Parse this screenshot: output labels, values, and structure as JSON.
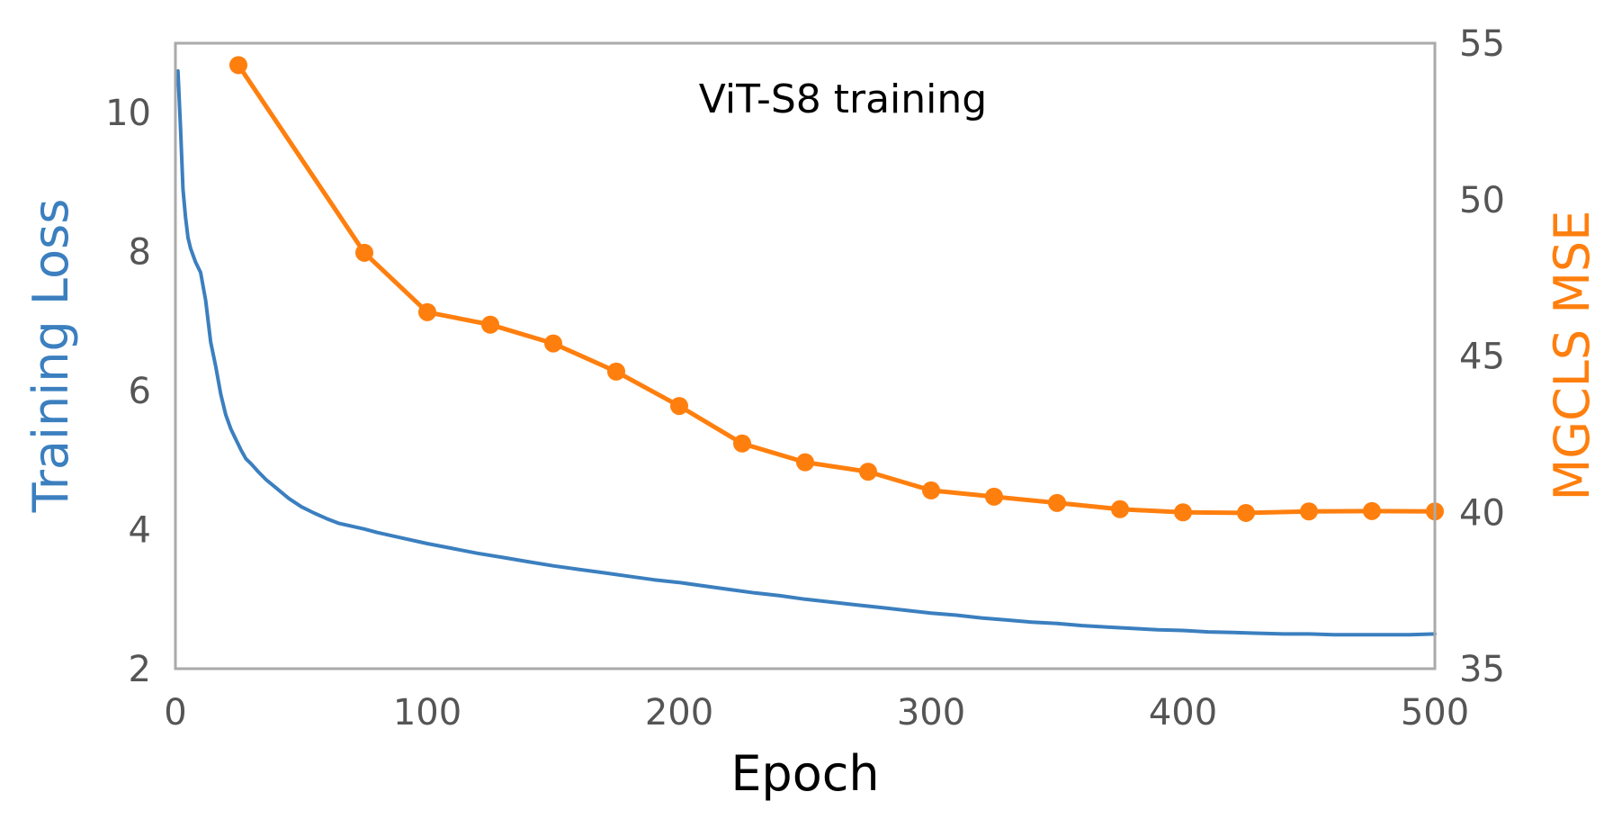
{
  "chart_data": {
    "type": "line",
    "title": "ViT-S8 training",
    "xlabel": "Epoch",
    "ylabel_left": "Training Loss",
    "ylabel_right": "MGCLS MSE",
    "xlim": [
      0,
      500
    ],
    "ylim_left": [
      2,
      11
    ],
    "ylim_right": [
      35,
      55
    ],
    "xticks": [
      0,
      100,
      200,
      300,
      400,
      500
    ],
    "yticks_left": [
      2,
      4,
      6,
      8,
      10
    ],
    "yticks_right": [
      35,
      40,
      45,
      50,
      55
    ],
    "grid": false,
    "colors": {
      "loss": "#3b7fbf",
      "mse": "#ff7f0e",
      "frame": "#aaaaaa",
      "tick": "#555555"
    },
    "series": [
      {
        "name": "Training Loss",
        "axis": "left",
        "x": [
          1,
          2,
          3,
          4,
          5,
          6,
          8,
          10,
          12,
          14,
          16,
          18,
          20,
          22,
          24,
          26,
          28,
          30,
          33,
          36,
          40,
          45,
          50,
          55,
          60,
          65,
          70,
          75,
          80,
          90,
          100,
          110,
          120,
          130,
          140,
          150,
          160,
          170,
          180,
          190,
          200,
          210,
          220,
          230,
          240,
          250,
          260,
          270,
          280,
          290,
          300,
          310,
          320,
          330,
          340,
          350,
          360,
          370,
          380,
          390,
          400,
          410,
          420,
          430,
          440,
          450,
          460,
          470,
          480,
          490,
          500
        ],
        "values": [
          10.6,
          9.8,
          8.9,
          8.5,
          8.2,
          8.05,
          7.85,
          7.7,
          7.3,
          6.7,
          6.35,
          5.95,
          5.65,
          5.45,
          5.3,
          5.15,
          5.02,
          4.95,
          4.83,
          4.72,
          4.6,
          4.45,
          4.33,
          4.24,
          4.16,
          4.09,
          4.05,
          4.01,
          3.96,
          3.88,
          3.8,
          3.73,
          3.66,
          3.6,
          3.54,
          3.48,
          3.43,
          3.38,
          3.33,
          3.28,
          3.24,
          3.19,
          3.14,
          3.09,
          3.05,
          3.0,
          2.96,
          2.92,
          2.88,
          2.84,
          2.8,
          2.77,
          2.73,
          2.7,
          2.67,
          2.65,
          2.62,
          2.6,
          2.58,
          2.56,
          2.55,
          2.53,
          2.52,
          2.51,
          2.5,
          2.5,
          2.49,
          2.49,
          2.49,
          2.49,
          2.5
        ]
      },
      {
        "name": "MGCLS MSE",
        "axis": "right",
        "markers": true,
        "x": [
          25,
          75,
          100,
          125,
          150,
          175,
          200,
          225,
          250,
          275,
          300,
          325,
          350,
          375,
          400,
          425,
          450,
          475,
          500
        ],
        "values": [
          54.3,
          48.3,
          46.4,
          46.0,
          45.4,
          44.5,
          43.4,
          42.2,
          41.6,
          41.3,
          40.7,
          40.5,
          40.3,
          40.1,
          40.0,
          39.98,
          40.03,
          40.04,
          40.03
        ]
      }
    ]
  }
}
